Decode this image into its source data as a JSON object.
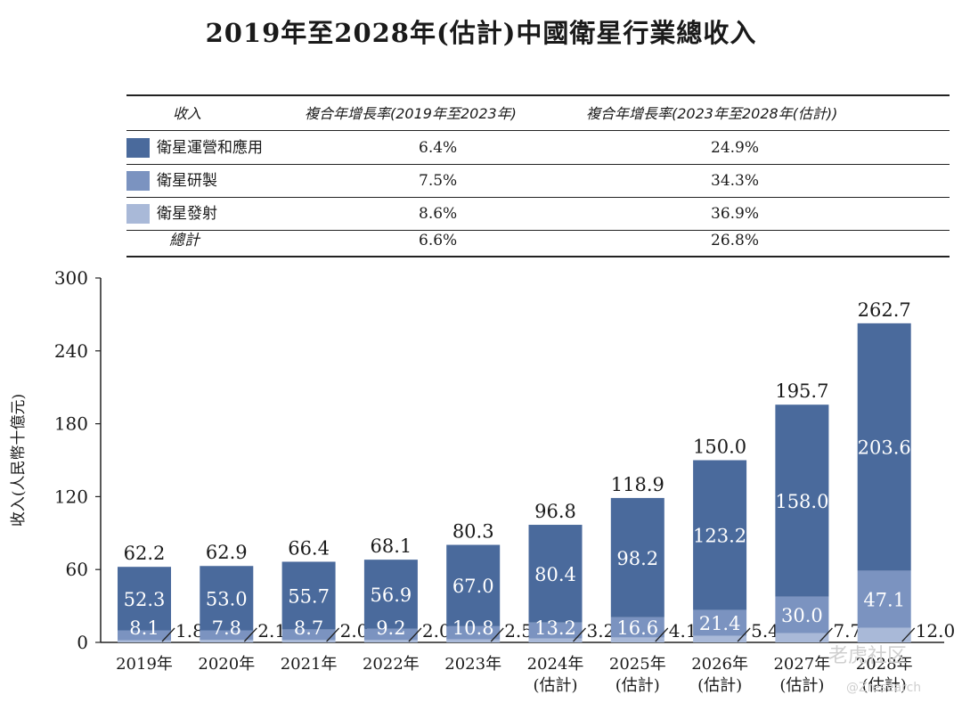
{
  "title": "2019年至2028年(估計)中國衛星行業總收入",
  "legend_table": {
    "headers": [
      "收入",
      "複合年增長率(2019年至2023年)",
      "複合年增長率(2023年至2028年(估計))"
    ],
    "rows": [
      {
        "label": "衛星運營和應用",
        "cagr1": "6.4%",
        "cagr2": "24.9%",
        "color": "#4a6a9c"
      },
      {
        "label": "衛星研製",
        "cagr1": "7.5%",
        "cagr2": "34.3%",
        "color": "#7b93c0"
      },
      {
        "label": "衛星發射",
        "cagr1": "8.6%",
        "cagr2": "36.9%",
        "color": "#a9b9d8"
      }
    ],
    "total": {
      "label": "總計",
      "cagr1": "6.6%",
      "cagr2": "26.8%"
    }
  },
  "chart_data": {
    "type": "bar",
    "stacked": true,
    "ylabel": "收入(人民幣十億元)",
    "ylim": [
      0,
      300
    ],
    "yticks": [
      0,
      60,
      120,
      180,
      240,
      300
    ],
    "categories": [
      [
        "2019年"
      ],
      [
        "2020年"
      ],
      [
        "2021年"
      ],
      [
        "2022年"
      ],
      [
        "2023年"
      ],
      [
        "2024年",
        "(估計)"
      ],
      [
        "2025年",
        "(估計)"
      ],
      [
        "2026年",
        "(估計)"
      ],
      [
        "2027年",
        "(估計)"
      ],
      [
        "2028年",
        "(估計)"
      ]
    ],
    "series": [
      {
        "name": "衛星發射",
        "color": "#a9b9d8",
        "values": [
          1.8,
          2.1,
          2.0,
          2.0,
          2.5,
          3.2,
          4.1,
          5.4,
          7.7,
          12.0
        ]
      },
      {
        "name": "衛星研製",
        "color": "#7b93c0",
        "values": [
          8.1,
          7.8,
          8.7,
          9.2,
          10.8,
          13.2,
          16.6,
          21.4,
          30.0,
          47.1
        ]
      },
      {
        "name": "衛星運營和應用",
        "color": "#4a6a9c",
        "values": [
          52.3,
          53.0,
          55.7,
          56.9,
          67.0,
          80.4,
          98.2,
          123.2,
          158.0,
          203.6
        ]
      }
    ],
    "totals": [
      62.2,
      62.9,
      66.4,
      68.1,
      80.3,
      96.8,
      118.9,
      150.0,
      195.7,
      262.7
    ],
    "grid": false,
    "legend": "table above chart"
  },
  "watermark": {
    "line1": "老虎社区",
    "line2": "@Zresearch"
  }
}
